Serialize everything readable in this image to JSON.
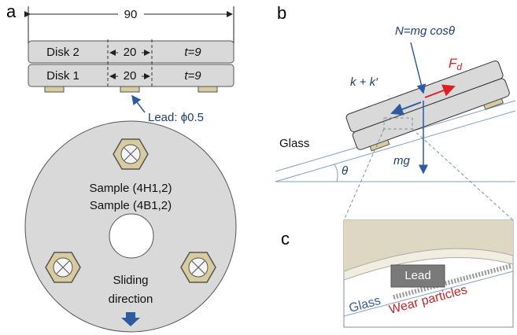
{
  "panel_a": {
    "label": "a",
    "overall_width": "90",
    "disks": [
      {
        "name": "Disk 2",
        "width": "20",
        "thickness": "t=9"
      },
      {
        "name": "Disk 1",
        "width": "20",
        "thickness": "t=9"
      }
    ],
    "lead_note": "Lead: ϕ0.5",
    "samples": [
      "Sample (4H1,2)",
      "Sample (4B1,2)"
    ],
    "direction": [
      "Sliding",
      "direction"
    ]
  },
  "panel_b": {
    "label": "b",
    "normal_force": "N=mg cosθ",
    "friction": {
      "label": "F",
      "subscript": "d"
    },
    "stiffness": "k + k′",
    "glass": "Glass",
    "angle": "θ",
    "weight": "mg"
  },
  "panel_c": {
    "label": "c",
    "lead": "Lead",
    "glass": "Glass",
    "particles": "Wear particles"
  }
}
